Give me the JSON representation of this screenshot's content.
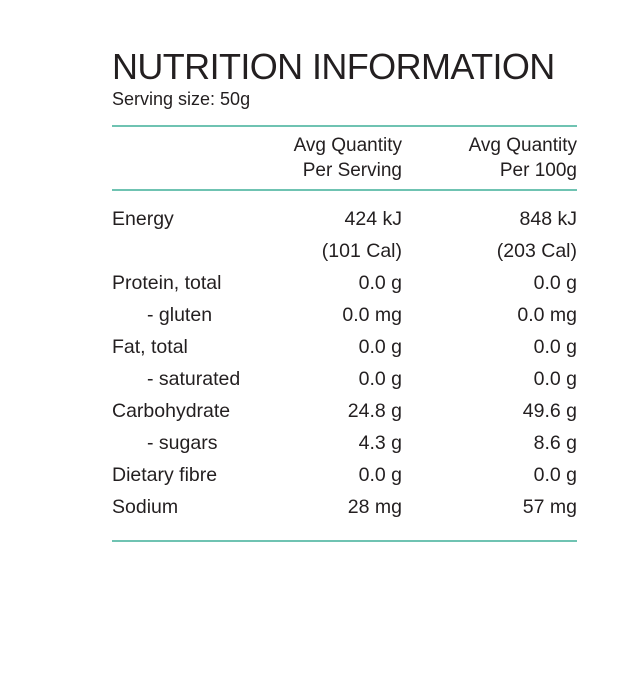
{
  "panel": {
    "title": "NUTRITION INFORMATION",
    "serving_size": "Serving size: 50g",
    "accent_color": "#6fc3b2"
  },
  "table": {
    "header": {
      "col1_line1": "Avg Quantity",
      "col1_line2": "Per Serving",
      "col2_line1": "Avg Quantity",
      "col2_line2": "Per 100g"
    },
    "rows": [
      {
        "label": "Energy",
        "per_serving": "424 kJ",
        "per_100g": "848 kJ"
      },
      {
        "label": "",
        "per_serving": "(101 Cal)",
        "per_100g": "(203 Cal)"
      },
      {
        "label": "Protein, total",
        "per_serving": "0.0 g",
        "per_100g": "0.0 g"
      },
      {
        "label": "- gluten",
        "per_serving": "0.0 mg",
        "per_100g": "0.0 mg"
      },
      {
        "label": "Fat, total",
        "per_serving": "0.0 g",
        "per_100g": "0.0 g"
      },
      {
        "label": "- saturated",
        "per_serving": "0.0 g",
        "per_100g": "0.0 g"
      },
      {
        "label": "Carbohydrate",
        "per_serving": "24.8 g",
        "per_100g": "49.6 g"
      },
      {
        "label": "- sugars",
        "per_serving": "4.3 g",
        "per_100g": "8.6 g"
      },
      {
        "label": "Dietary fibre",
        "per_serving": "0.0 g",
        "per_100g": "0.0 g"
      },
      {
        "label": "Sodium",
        "per_serving": "28 mg",
        "per_100g": "57 mg"
      }
    ]
  }
}
